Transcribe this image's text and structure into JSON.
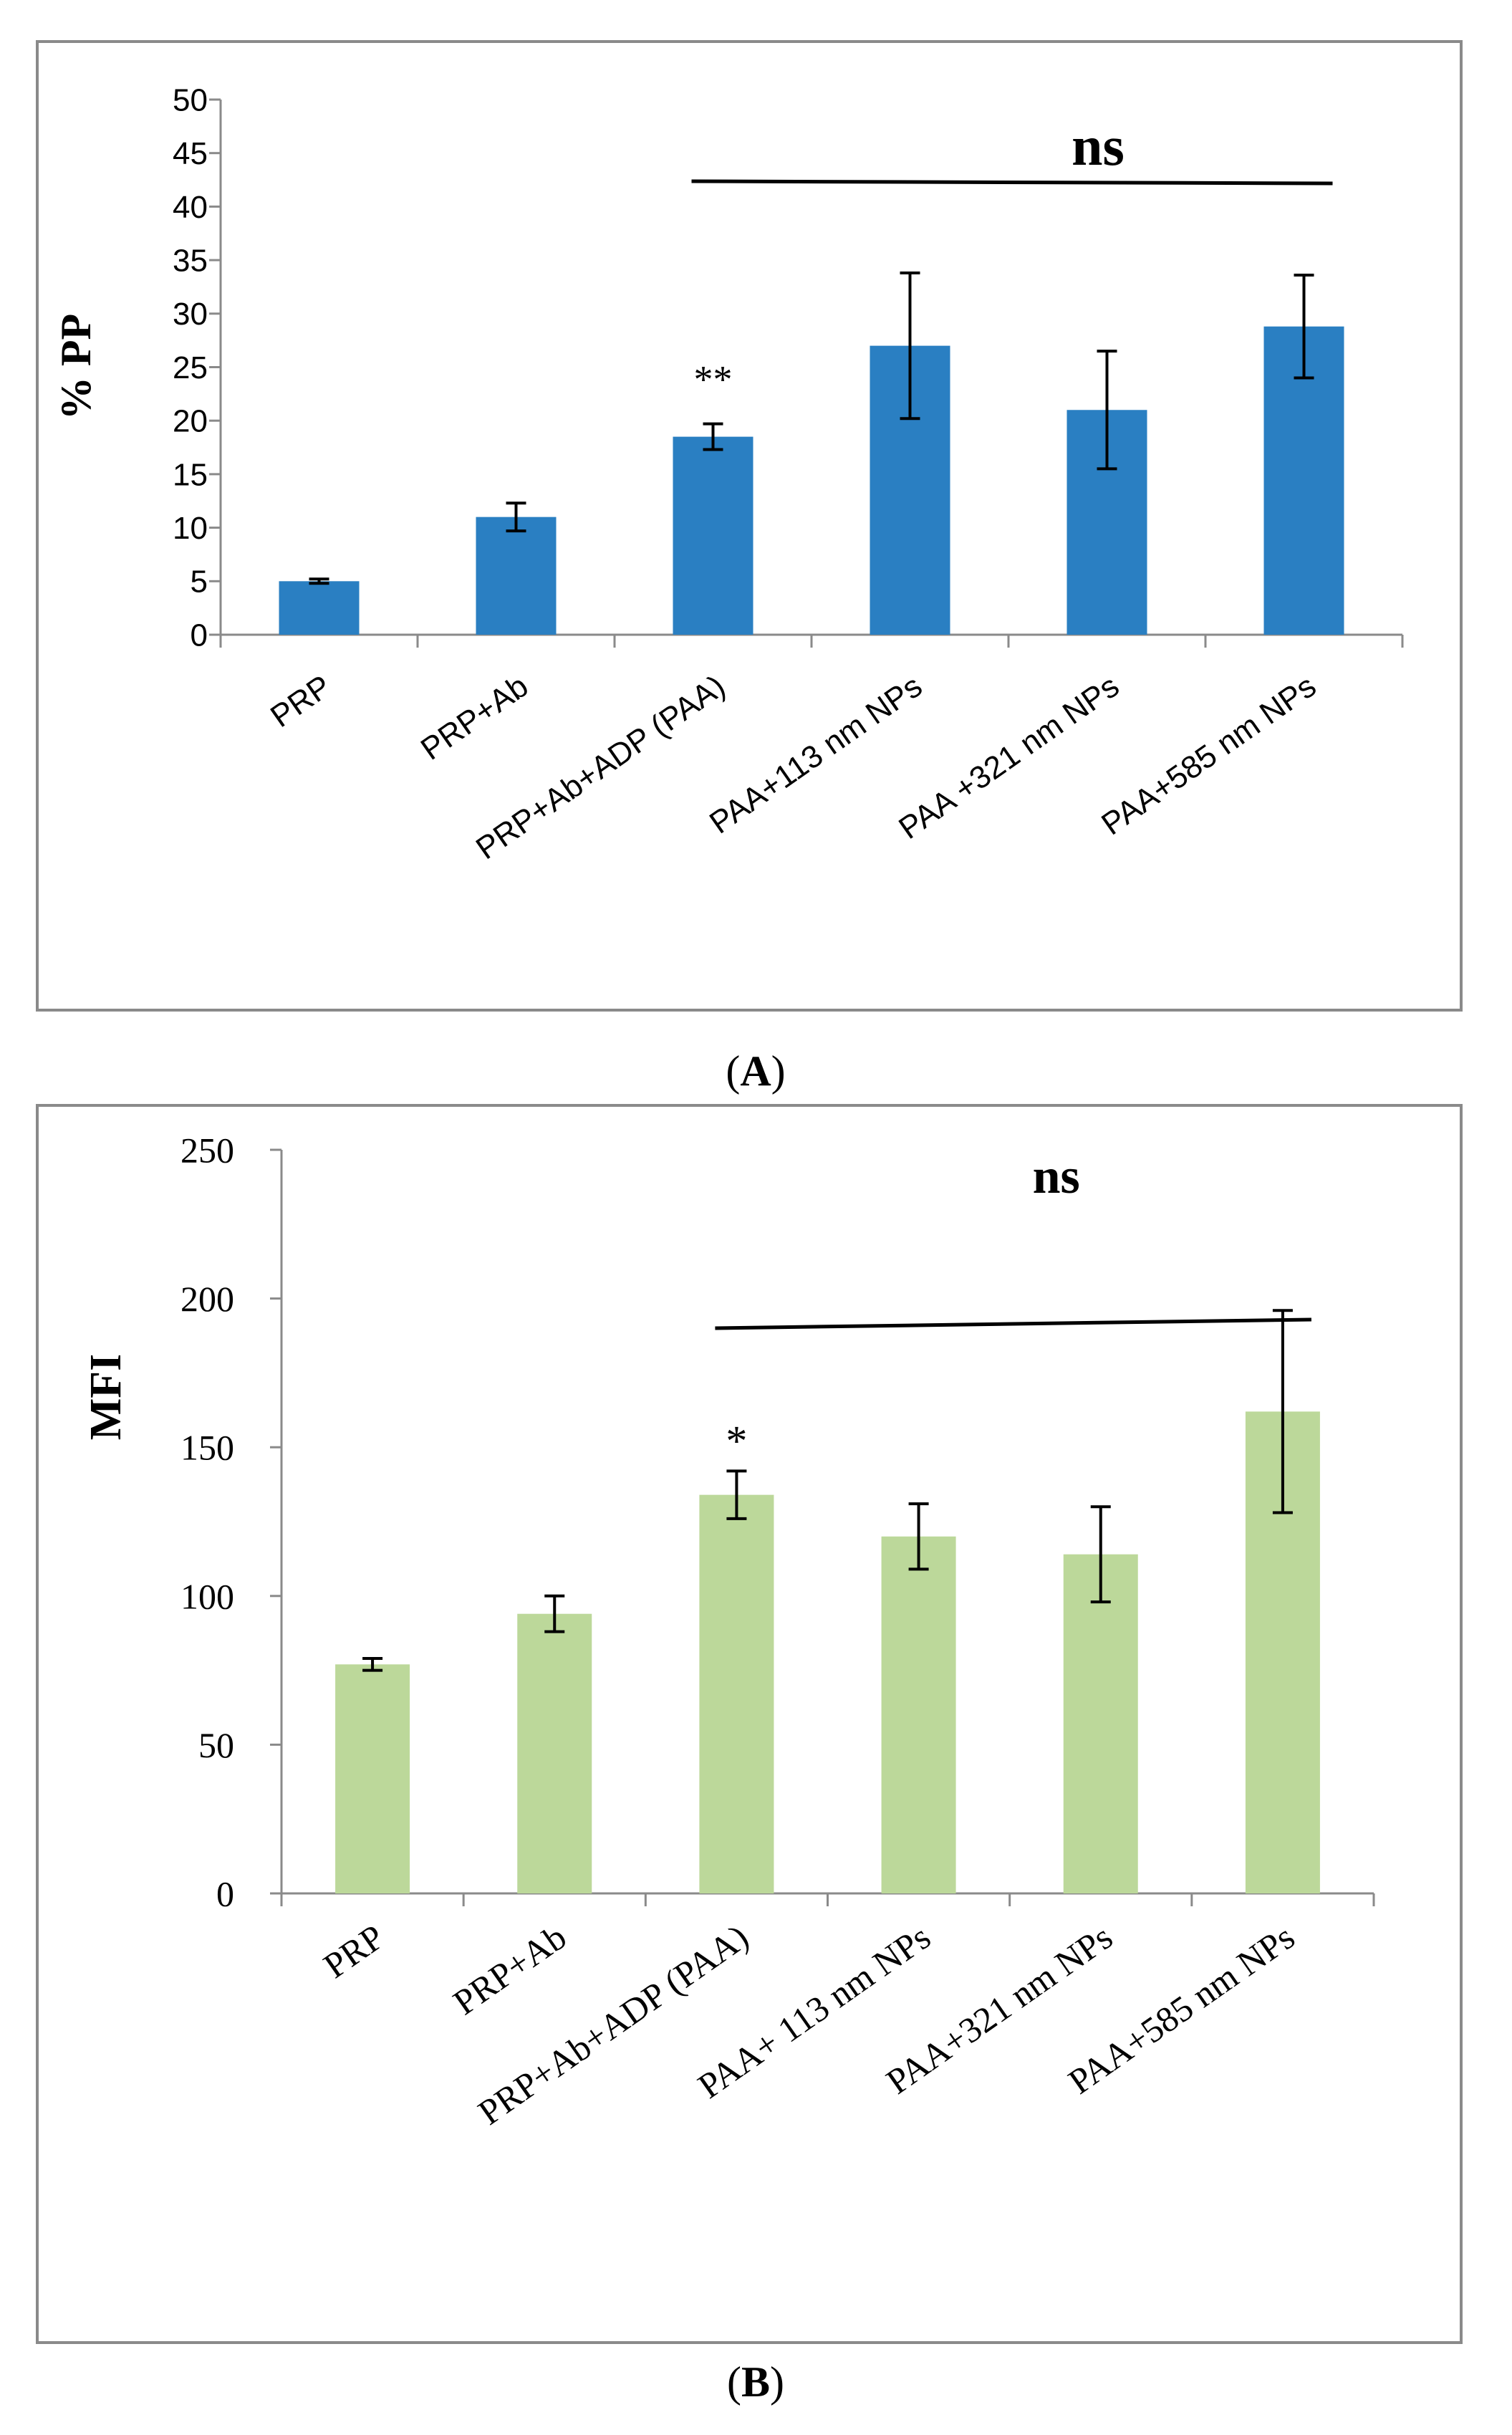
{
  "chart_data": [
    {
      "panel_label": "A",
      "type": "bar",
      "title": "",
      "xlabel": "",
      "ylabel": "% PP",
      "ylim": [
        0,
        50
      ],
      "yticks": [
        0,
        5,
        10,
        15,
        20,
        25,
        30,
        35,
        40,
        45,
        50
      ],
      "grid": false,
      "legend": "none",
      "bar_color": "#2a7fc2",
      "categories": [
        "PRP",
        "PRP+Ab",
        "PRP+Ab+ADP (PAA)",
        "PAA+113 nm NPs",
        "PAA +321 nm NPs",
        "PAA+585 nm NPs"
      ],
      "values": [
        5.0,
        11.0,
        18.5,
        27.0,
        21.0,
        28.8
      ],
      "errors": [
        0.2,
        1.3,
        1.2,
        6.8,
        5.5,
        4.8
      ],
      "annotations": {
        "significance_marker": "**",
        "marker_category_index": 2,
        "bracket_label": "ns",
        "bracket_from_index": 2,
        "bracket_to_index": 5
      }
    },
    {
      "panel_label": "B",
      "type": "bar",
      "title": "",
      "xlabel": "",
      "ylabel": "MFI",
      "ylim": [
        0,
        250
      ],
      "yticks": [
        0,
        50,
        100,
        150,
        200,
        250
      ],
      "grid": false,
      "legend": "none",
      "bar_color": "#bcd89a",
      "categories": [
        "PRP",
        "PRP+Ab",
        "PRP+Ab+ADP (PAA)",
        "PAA+ 113 nm NPs",
        "PAA+321 nm NPs",
        "PAA+585 nm NPs"
      ],
      "values": [
        77,
        94,
        134,
        120,
        114,
        162
      ],
      "errors": [
        2,
        6,
        8,
        11,
        16,
        34
      ],
      "annotations": {
        "significance_marker": "*",
        "marker_category_index": 2,
        "bracket_label": "ns",
        "bracket_from_index": 2,
        "bracket_to_index": 5
      }
    }
  ],
  "panel_captions": [
    "(A)",
    "(B)"
  ]
}
